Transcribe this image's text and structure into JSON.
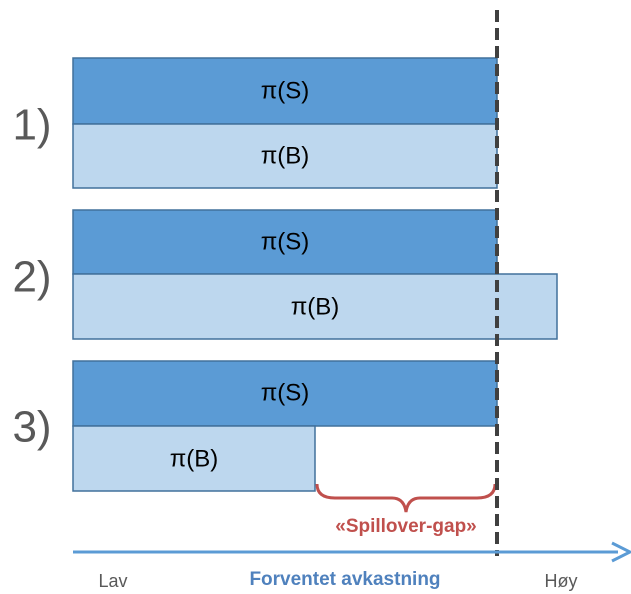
{
  "rows": [
    {
      "label": "1)",
      "top": "π(S)",
      "bottom": "π(B)"
    },
    {
      "label": "2)",
      "top": "π(S)",
      "bottom": "π(B)"
    },
    {
      "label": "3)",
      "top": "π(S)",
      "bottom": "π(B)"
    }
  ],
  "gap_label": "«Spillover-gap»",
  "axis": {
    "left": "Lav",
    "title": "Forventet avkastning",
    "right": "Høy"
  }
}
